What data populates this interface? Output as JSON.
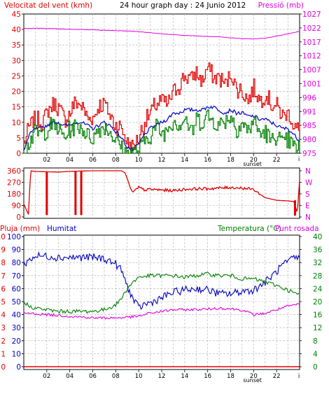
{
  "chart_data": [
    {
      "type": "line",
      "title": "24 hour graph day : 24 Junio 2012",
      "y_left_label": "Velocitat del vent (kmh)",
      "y_right_label": "Pressió (mb)",
      "y_left_ticks": [
        "0",
        "5",
        "10",
        "15",
        "20",
        "25",
        "30",
        "35",
        "40",
        "45"
      ],
      "y_left_range": [
        0,
        45
      ],
      "y_right_ticks": [
        "975",
        "980",
        "985",
        "991",
        "996",
        "1001",
        "1007",
        "1012",
        "1017",
        "1022",
        "1027"
      ],
      "y_right_range": [
        975,
        1027
      ],
      "x_range": [
        0,
        24
      ],
      "x_tick_labels": [
        "02",
        "04",
        "06",
        "08",
        "10",
        "12",
        "14",
        "16",
        "18",
        "20",
        "22"
      ],
      "x_tick_hours": [
        2,
        4,
        6,
        8,
        10,
        12,
        14,
        16,
        18,
        20,
        22
      ],
      "sunset_label": "sunset",
      "sunset_hour": 19.9,
      "end_tick_label": "i",
      "series": [
        {
          "name": "gust",
          "color": "#e00000",
          "axis": "left",
          "x": [
            0,
            0.5,
            1,
            1.5,
            2,
            2.5,
            3,
            3.5,
            4,
            4.5,
            5,
            5.5,
            6,
            6.5,
            7,
            7.5,
            8,
            8.5,
            9,
            9.5,
            10,
            10.5,
            11,
            11.5,
            12,
            12.5,
            13,
            13.5,
            14,
            14.5,
            15,
            15.5,
            16,
            16.5,
            17,
            17.5,
            18,
            18.5,
            19,
            19.5,
            20,
            20.5,
            21,
            21.5,
            22,
            22.5,
            23,
            23.5,
            24
          ],
          "values": [
            3,
            9,
            11,
            10,
            13,
            16,
            15,
            11,
            13,
            17,
            15,
            12,
            11,
            15,
            16,
            12,
            9,
            8,
            3,
            2,
            5,
            10,
            13,
            16,
            17,
            16,
            20,
            22,
            25,
            24,
            26,
            23,
            28,
            24,
            25,
            22,
            26,
            21,
            20,
            17,
            21,
            17,
            19,
            16,
            15,
            12,
            13,
            9,
            7
          ]
        },
        {
          "name": "avg",
          "color": "#0000c0",
          "axis": "left",
          "x": [
            0,
            0.5,
            1,
            1.5,
            2,
            2.5,
            3,
            3.5,
            4,
            4.5,
            5,
            5.5,
            6,
            6.5,
            7,
            7.5,
            8,
            8.5,
            9,
            9.5,
            10,
            10.5,
            11,
            11.5,
            12,
            12.5,
            13,
            13.5,
            14,
            14.5,
            15,
            15.5,
            16,
            16.5,
            17,
            17.5,
            18,
            18.5,
            19,
            19.5,
            20,
            20.5,
            21,
            21.5,
            22,
            22.5,
            23,
            23.5,
            24
          ],
          "values": [
            1,
            6,
            8,
            8,
            9,
            10,
            10,
            9,
            9,
            10,
            10,
            9,
            8,
            9,
            10,
            9,
            7,
            5,
            2,
            1,
            3,
            6,
            8,
            9,
            10,
            11,
            13,
            13,
            14,
            14,
            14,
            14,
            15,
            15,
            14,
            13,
            14,
            13,
            13,
            12,
            12,
            11,
            11,
            10,
            9,
            8,
            8,
            6,
            4
          ]
        },
        {
          "name": "low",
          "color": "#008000",
          "axis": "left",
          "x": [
            0,
            0.5,
            1,
            1.5,
            2,
            2.5,
            3,
            3.5,
            4,
            4.5,
            5,
            5.5,
            6,
            6.5,
            7,
            7.5,
            8,
            8.5,
            9,
            9.5,
            10,
            10.5,
            11,
            11.5,
            12,
            12.5,
            13,
            13.5,
            14,
            14.5,
            15,
            15.5,
            16,
            16.5,
            17,
            17.5,
            18,
            18.5,
            19,
            19.5,
            20,
            20.5,
            21,
            21.5,
            22,
            22.5,
            23,
            23.5,
            24
          ],
          "values": [
            0,
            4,
            7,
            6,
            8,
            9,
            8,
            5,
            8,
            9,
            8,
            6,
            5,
            8,
            9,
            7,
            4,
            2,
            0,
            0,
            1,
            4,
            6,
            9,
            6,
            8,
            11,
            9,
            12,
            6,
            11,
            10,
            12,
            10,
            9,
            11,
            12,
            8,
            10,
            7,
            11,
            6,
            7,
            4,
            6,
            3,
            4,
            2,
            2
          ]
        },
        {
          "name": "pressure",
          "color": "#e000e0",
          "axis": "right",
          "x": [
            0,
            1,
            2,
            3,
            4,
            5,
            6,
            7,
            8,
            9,
            10,
            11,
            12,
            13,
            14,
            15,
            16,
            17,
            18,
            19,
            20,
            21,
            22,
            23,
            24
          ],
          "values": [
            1021.6,
            1021.7,
            1021.6,
            1021.5,
            1021.3,
            1021.2,
            1021.1,
            1020.9,
            1020.8,
            1020.7,
            1020.4,
            1020.0,
            1019.6,
            1019.3,
            1019.0,
            1018.8,
            1018.6,
            1018.5,
            1018.1,
            1017.8,
            1017.7,
            1018.0,
            1018.8,
            1019.6,
            1020.5
          ]
        }
      ]
    },
    {
      "type": "line",
      "y_left_ticks": [
        "360",
        "270",
        "180",
        "90",
        "0"
      ],
      "y_left_range": [
        0,
        360
      ],
      "y_right_ticks": [
        "N",
        "W",
        "S",
        "E",
        "N"
      ],
      "x_range": [
        0,
        24
      ],
      "series": [
        {
          "name": "direction",
          "color": "#e00000",
          "x": [
            0,
            0.2,
            0.4,
            0.6,
            1,
            2,
            3,
            4,
            5,
            6,
            7,
            8,
            8.5,
            8.8,
            9,
            9.3,
            9.5,
            10,
            10.5,
            11,
            12,
            13,
            14,
            15,
            16,
            17,
            18,
            19,
            20,
            20.5,
            21,
            22,
            23,
            23.5,
            23.8,
            24
          ],
          "values": [
            100,
            60,
            20,
            360,
            355,
            352,
            350,
            355,
            358,
            360,
            360,
            360,
            360,
            345,
            300,
            220,
            190,
            230,
            210,
            215,
            210,
            205,
            215,
            220,
            220,
            225,
            230,
            225,
            215,
            180,
            150,
            130,
            125,
            120,
            30,
            290
          ],
          "spikes": [
            {
              "x": 2,
              "from": 350,
              "to": 15
            },
            {
              "x": 4.5,
              "from": 355,
              "to": 15
            },
            {
              "x": 5,
              "from": 358,
              "to": 15
            },
            {
              "x": 23.6,
              "from": 130,
              "to": 10
            }
          ]
        }
      ]
    },
    {
      "type": "line",
      "y_left_label_a": "Pluja (mm)",
      "y_left_label_b": "Humitat",
      "y_right_label_a": "Temperatura (°C)",
      "y_right_label_b": "Punt rosada",
      "y_rain_ticks": [
        "0",
        "1",
        "2",
        "3",
        "4",
        "5",
        "6",
        "7",
        "8",
        "9",
        "10"
      ],
      "y_hum_ticks": [
        "0",
        "10",
        "20",
        "30",
        "40",
        "50",
        "60",
        "70",
        "80",
        "90",
        "100"
      ],
      "y_hum_range": [
        0,
        100
      ],
      "y_temp_ticks": [
        "0",
        "4",
        "8",
        "12",
        "16",
        "20",
        "24",
        "28",
        "32",
        "36",
        "40"
      ],
      "y_temp_range": [
        0,
        40
      ],
      "x_range": [
        0,
        24
      ],
      "x_tick_labels": [
        "02",
        "04",
        "06",
        "08",
        "10",
        "12",
        "14",
        "16",
        "18",
        "20",
        "22"
      ],
      "x_tick_hours": [
        2,
        4,
        6,
        8,
        10,
        12,
        14,
        16,
        18,
        20,
        22
      ],
      "sunset_label": "sunset",
      "sunset_hour": 19.9,
      "end_tick_label": "i",
      "series": [
        {
          "name": "humidity",
          "color": "#0000c0",
          "axis": "hum",
          "x": [
            0,
            1,
            2,
            3,
            4,
            5,
            6,
            7,
            8,
            8.5,
            9,
            9.5,
            10,
            10.5,
            11,
            12,
            13,
            14,
            15,
            16,
            17,
            18,
            19,
            20,
            20.5,
            21,
            22,
            22.5,
            23,
            23.5,
            24
          ],
          "values": [
            79,
            85,
            85,
            84,
            84,
            84,
            84,
            83,
            79,
            74,
            62,
            52,
            45,
            48,
            49,
            53,
            57,
            59,
            60,
            59,
            56,
            56,
            58,
            59,
            62,
            65,
            73,
            78,
            80,
            84,
            83
          ],
          "noise": 3
        },
        {
          "name": "temperature",
          "color": "#008000",
          "axis": "temp",
          "x": [
            0,
            0.5,
            1,
            2,
            3,
            4,
            5,
            6,
            7,
            8,
            8.5,
            9,
            9.5,
            10,
            11,
            12,
            13,
            14,
            15,
            16,
            17,
            18,
            19,
            20,
            21,
            22,
            23,
            24
          ],
          "values": [
            20,
            18.5,
            18,
            17.5,
            17,
            17,
            17,
            17,
            17.5,
            19,
            21,
            24,
            26,
            27.5,
            28,
            28,
            28,
            27.5,
            28,
            28.5,
            28,
            28,
            27,
            27,
            26,
            25,
            23.5,
            22
          ],
          "noise": 0.6
        },
        {
          "name": "dewpoint",
          "color": "#e000e0",
          "axis": "temp",
          "x": [
            0,
            1,
            2,
            3,
            4,
            5,
            6,
            7,
            8,
            9,
            10,
            11,
            12,
            13,
            14,
            15,
            16,
            17,
            18,
            19,
            20,
            21,
            22,
            23,
            24
          ],
          "values": [
            16.5,
            16.3,
            16,
            15.8,
            15.5,
            15.3,
            15,
            15,
            15,
            15.2,
            15.5,
            16.5,
            17,
            17.5,
            17.5,
            17.6,
            17.7,
            18,
            17.8,
            17.4,
            16,
            16.4,
            17.5,
            18.6,
            19.2
          ],
          "noise": 0.4
        },
        {
          "name": "rain",
          "color": "#e00000",
          "axis": "hum",
          "x": [
            0,
            24
          ],
          "values": [
            0,
            0
          ],
          "noise": 0
        }
      ]
    }
  ]
}
